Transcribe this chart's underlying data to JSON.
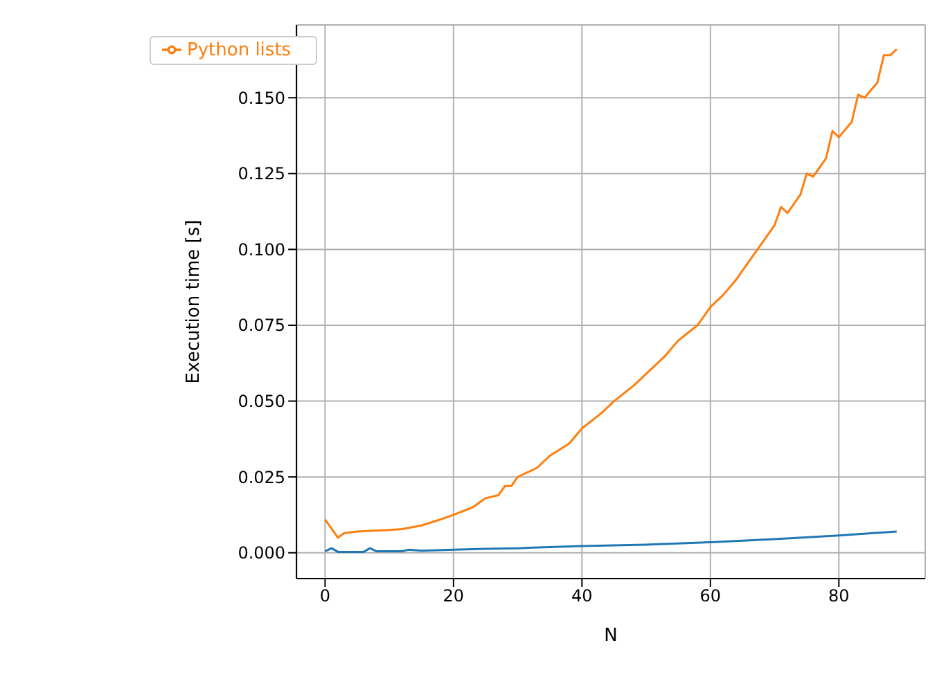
{
  "chart_data": {
    "type": "line",
    "xlabel": "N",
    "ylabel": "Execution time [s]",
    "xlim": [
      -4.45,
      93.45
    ],
    "ylim": [
      -0.0085,
      0.174
    ],
    "xticks": [
      0,
      20,
      40,
      60,
      80
    ],
    "yticks": [
      {
        "value": 0,
        "label": "0.000"
      },
      {
        "value": 0.025,
        "label": "0.025"
      },
      {
        "value": 0.05,
        "label": "0.050"
      },
      {
        "value": 0.075,
        "label": "0.075"
      },
      {
        "value": 0.1,
        "label": "0.100"
      },
      {
        "value": 0.125,
        "label": "0.125"
      },
      {
        "value": 0.15,
        "label": "0.150"
      }
    ],
    "grid": true,
    "legend": "top left",
    "marker": "none",
    "line_style": "solid",
    "series": [
      {
        "color": "#1f77b4",
        "x": [
          0,
          1,
          2,
          6,
          7,
          8,
          12,
          13,
          15,
          20,
          25,
          30,
          35,
          40,
          50,
          60,
          70,
          80,
          89
        ],
        "values": [
          0.0005,
          0.0015,
          0.0003,
          0.0003,
          0.0015,
          0.0005,
          0.0005,
          0.001,
          0.0007,
          0.001,
          0.0013,
          0.0015,
          0.0019,
          0.0022,
          0.0027,
          0.0035,
          0.0045,
          0.0057,
          0.007
        ]
      },
      {
        "name": "Python lists",
        "color": "#ff7f0e",
        "x": [
          0,
          2,
          3,
          5,
          10,
          12,
          15,
          18,
          20,
          23,
          25,
          27,
          28,
          29,
          30,
          33,
          35,
          38,
          40,
          43,
          45,
          48,
          50,
          53,
          55,
          58,
          60,
          62,
          64,
          66,
          68,
          70,
          71,
          72,
          74,
          75,
          76,
          78,
          79,
          80,
          82,
          83,
          84,
          86,
          87,
          88,
          89
        ],
        "values": [
          0.011,
          0.005,
          0.0065,
          0.007,
          0.0075,
          0.0078,
          0.009,
          0.011,
          0.0125,
          0.015,
          0.018,
          0.019,
          0.022,
          0.022,
          0.025,
          0.028,
          0.032,
          0.036,
          0.041,
          0.046,
          0.05,
          0.055,
          0.059,
          0.065,
          0.07,
          0.075,
          0.081,
          0.085,
          0.09,
          0.096,
          0.102,
          0.108,
          0.114,
          0.112,
          0.118,
          0.125,
          0.124,
          0.13,
          0.139,
          0.137,
          0.142,
          0.151,
          0.15,
          0.155,
          0.164,
          0.164,
          0.166
        ]
      }
    ]
  }
}
